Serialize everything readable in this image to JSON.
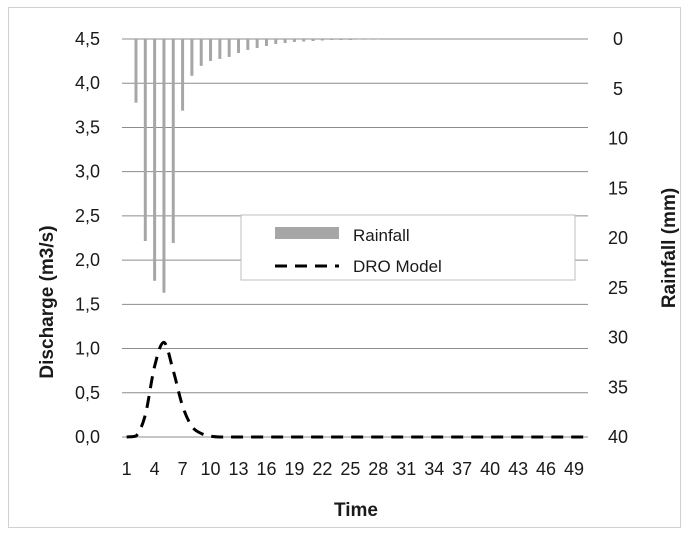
{
  "chart_data": {
    "type": "bar+line",
    "title": "",
    "xlabel": "Time",
    "ylabel_left": "Discharge (m3/s)",
    "ylabel_right": "Rainfall (mm)",
    "ylim_left": [
      0,
      4.5
    ],
    "ylim_right_inverted": [
      0,
      40
    ],
    "y_left_ticks": [
      "0,0",
      "0,5",
      "1,0",
      "1,5",
      "2,0",
      "2,5",
      "3,0",
      "3,5",
      "4,0",
      "4,5"
    ],
    "y_right_ticks": [
      "0",
      "5",
      "10",
      "15",
      "20",
      "25",
      "30",
      "35",
      "40"
    ],
    "x_tick_labels": [
      "1",
      "4",
      "7",
      "10",
      "13",
      "16",
      "19",
      "22",
      "25",
      "28",
      "31",
      "34",
      "37",
      "40",
      "43",
      "46",
      "49"
    ],
    "x_count": 50,
    "grid": true,
    "legend_position": "center-right",
    "series": [
      {
        "name": "Rainfall",
        "kind": "bar",
        "axis": "right",
        "color": "#a6a6a6",
        "x": [
          2,
          3,
          4,
          5,
          6,
          7,
          8,
          9,
          10,
          11,
          12,
          13,
          14,
          15,
          16,
          17,
          18,
          19,
          20,
          21,
          22,
          23,
          24,
          25,
          26,
          27,
          28
        ],
        "values": [
          6.4,
          20.3,
          24.3,
          25.5,
          20.5,
          7.2,
          3.7,
          2.7,
          2.2,
          2.0,
          1.8,
          1.4,
          1.1,
          0.9,
          0.7,
          0.5,
          0.4,
          0.3,
          0.25,
          0.2,
          0.15,
          0.1,
          0.1,
          0.1,
          0.05,
          0.05,
          0.05
        ]
      },
      {
        "name": "DRO Model",
        "kind": "line",
        "style": "dashed",
        "axis": "left",
        "color": "#000000",
        "x": [
          1,
          2,
          3,
          4,
          5,
          6,
          7,
          8,
          9,
          10,
          11,
          12,
          15,
          20,
          30,
          40,
          50
        ],
        "values": [
          0.0,
          0.01,
          0.25,
          0.8,
          1.07,
          0.75,
          0.35,
          0.12,
          0.04,
          0.01,
          0.0,
          0.0,
          0.0,
          0.0,
          0.0,
          0.0,
          0.0
        ]
      }
    ]
  }
}
